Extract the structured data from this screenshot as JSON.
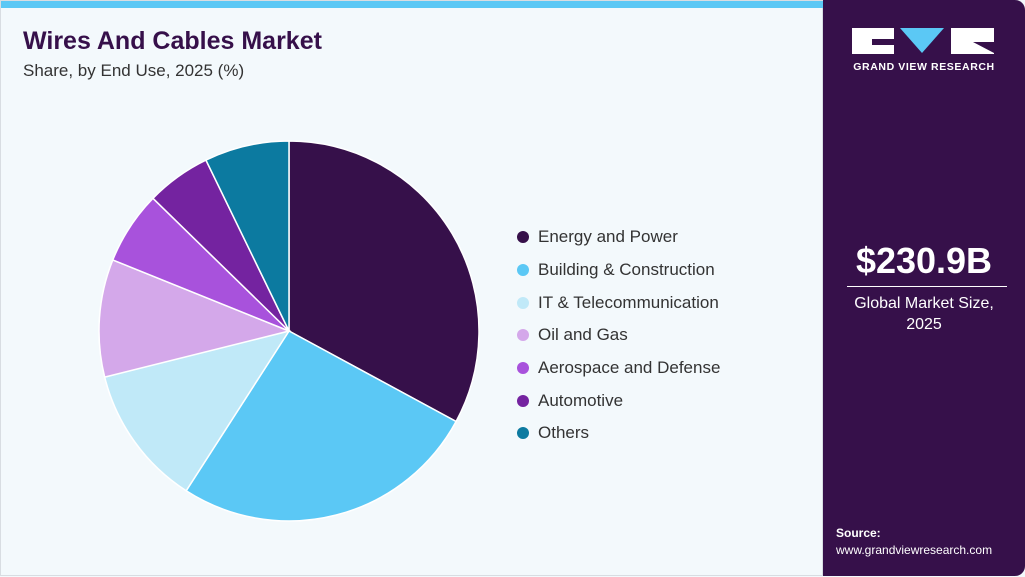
{
  "header": {
    "title": "Wires And Cables Market",
    "subtitle": "Share, by End Use, 2025 (%)"
  },
  "chart_data": {
    "type": "pie",
    "title": "Wires And Cables Market",
    "subtitle": "Share, by End Use, 2025 (%)",
    "legend_position": "right",
    "categories": [
      "Energy and Power",
      "Building & Construction",
      "IT & Telecommunication",
      "Oil and Gas",
      "Aerospace and Defense",
      "Automotive",
      "Others"
    ],
    "values": [
      32.9,
      26.2,
      12.0,
      10.0,
      6.2,
      5.5,
      7.2
    ],
    "colors": [
      "#36104a",
      "#5bc8f5",
      "#c0e9f8",
      "#d4a8ea",
      "#a852dc",
      "#7423a0",
      "#0c7aa0"
    ]
  },
  "sidebar": {
    "brand": "GRAND VIEW RESEARCH",
    "market_size": "$230.9B",
    "caption_line1": "Global Market Size,",
    "caption_line2": "2025",
    "source_label": "Source:",
    "source_url": "www.grandviewresearch.com"
  },
  "colors": {
    "accent": "#5bc8f5",
    "sidebar": "#36104a"
  }
}
